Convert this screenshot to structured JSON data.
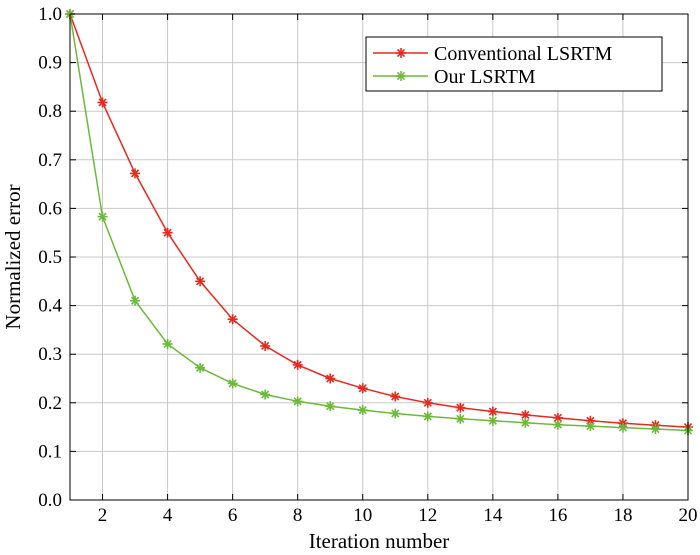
{
  "chart_data": {
    "type": "line",
    "title": "",
    "xlabel": "Iteration number",
    "ylabel": "Normalized error",
    "xlim": [
      1,
      20
    ],
    "ylim": [
      0,
      1.0
    ],
    "xticks": [
      2,
      4,
      6,
      8,
      10,
      12,
      14,
      16,
      18,
      20
    ],
    "yticks": [
      0.0,
      0.1,
      0.2,
      0.3,
      0.4,
      0.5,
      0.6,
      0.7,
      0.8,
      0.9,
      1.0
    ],
    "ytick_labels": [
      "0.0",
      "0.1",
      "0.2",
      "0.3",
      "0.4",
      "0.5",
      "0.6",
      "0.7",
      "0.8",
      "0.9",
      "1.0"
    ],
    "grid": true,
    "legend_position": "top-right",
    "x": [
      1,
      2,
      3,
      4,
      5,
      6,
      7,
      8,
      9,
      10,
      11,
      12,
      13,
      14,
      15,
      16,
      17,
      18,
      19,
      20
    ],
    "series": [
      {
        "name": "Conventional LSRTM",
        "color": "#e8291f",
        "marker": "asterisk",
        "values": [
          1.0,
          0.818,
          0.672,
          0.55,
          0.45,
          0.372,
          0.317,
          0.278,
          0.25,
          0.23,
          0.213,
          0.2,
          0.19,
          0.182,
          0.175,
          0.169,
          0.163,
          0.158,
          0.154,
          0.15
        ]
      },
      {
        "name": "Our LSRTM",
        "color": "#6cba3a",
        "marker": "asterisk",
        "values": [
          1.0,
          0.583,
          0.41,
          0.321,
          0.272,
          0.24,
          0.217,
          0.203,
          0.193,
          0.185,
          0.178,
          0.172,
          0.167,
          0.163,
          0.159,
          0.155,
          0.152,
          0.149,
          0.146,
          0.143
        ]
      }
    ]
  }
}
